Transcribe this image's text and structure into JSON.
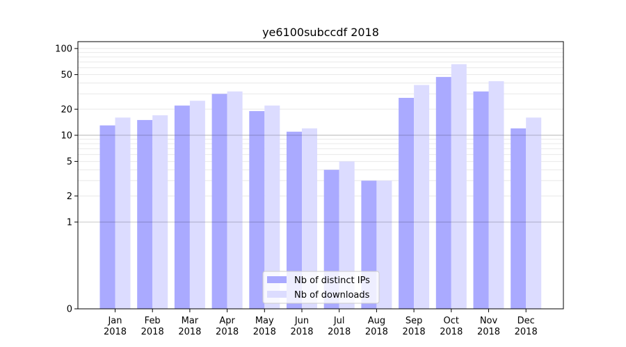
{
  "chart_data": {
    "type": "bar",
    "title": "ye6100subccdf 2018",
    "xlabel": "",
    "ylabel": "",
    "categories": [
      {
        "month": "Jan",
        "year": "2018"
      },
      {
        "month": "Feb",
        "year": "2018"
      },
      {
        "month": "Mar",
        "year": "2018"
      },
      {
        "month": "Apr",
        "year": "2018"
      },
      {
        "month": "May",
        "year": "2018"
      },
      {
        "month": "Jun",
        "year": "2018"
      },
      {
        "month": "Jul",
        "year": "2018"
      },
      {
        "month": "Aug",
        "year": "2018"
      },
      {
        "month": "Sep",
        "year": "2018"
      },
      {
        "month": "Oct",
        "year": "2018"
      },
      {
        "month": "Nov",
        "year": "2018"
      },
      {
        "month": "Dec",
        "year": "2018"
      }
    ],
    "series": [
      {
        "name": "Nb of distinct IPs",
        "color": "#aaaaff",
        "values": [
          13,
          15,
          22,
          30,
          19,
          11,
          4,
          3,
          27,
          47,
          32,
          12
        ]
      },
      {
        "name": "Nb of downloads",
        "color": "#dcdcff",
        "values": [
          16,
          17,
          25,
          32,
          22,
          12,
          5,
          3,
          38,
          66,
          42,
          16
        ]
      }
    ],
    "yscale": "symlog",
    "ylim": [
      0,
      120
    ],
    "yticks": [
      {
        "value": 0,
        "label": "0"
      },
      {
        "value": 1,
        "label": "1"
      },
      {
        "value": 2,
        "label": "2"
      },
      {
        "value": 5,
        "label": "5"
      },
      {
        "value": 10,
        "label": "10"
      },
      {
        "value": 20,
        "label": "20"
      },
      {
        "value": 50,
        "label": "50"
      },
      {
        "value": 100,
        "label": "100"
      }
    ],
    "reference_lines": [
      1,
      10
    ],
    "grid": true,
    "legend_position": "bottom-center"
  }
}
